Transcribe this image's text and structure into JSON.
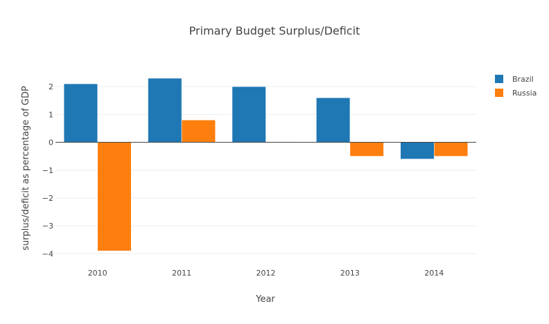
{
  "chart_data": {
    "type": "bar",
    "title": "Primary Budget Surplus/Deficit",
    "xlabel": "Year",
    "ylabel": "surplus/deficit as percentage of GDP",
    "categories": [
      "2010",
      "2011",
      "2012",
      "2013",
      "2014"
    ],
    "series": [
      {
        "name": "Brazil",
        "color": "#1f77b4",
        "values": [
          2.1,
          2.3,
          2.0,
          1.6,
          -0.6
        ]
      },
      {
        "name": "Russia",
        "color": "#ff7f0e",
        "values": [
          -3.9,
          0.8,
          0.0,
          -0.5,
          -0.5
        ]
      }
    ],
    "ylim": [
      -4.2,
      2.45
    ],
    "yticks": [
      2,
      1,
      0,
      -1,
      -2,
      -3,
      -4
    ],
    "ytick_labels": [
      "2",
      "1",
      "0",
      "−1",
      "−2",
      "−3",
      "−4"
    ],
    "grid": true,
    "legend_position": "top-right"
  }
}
